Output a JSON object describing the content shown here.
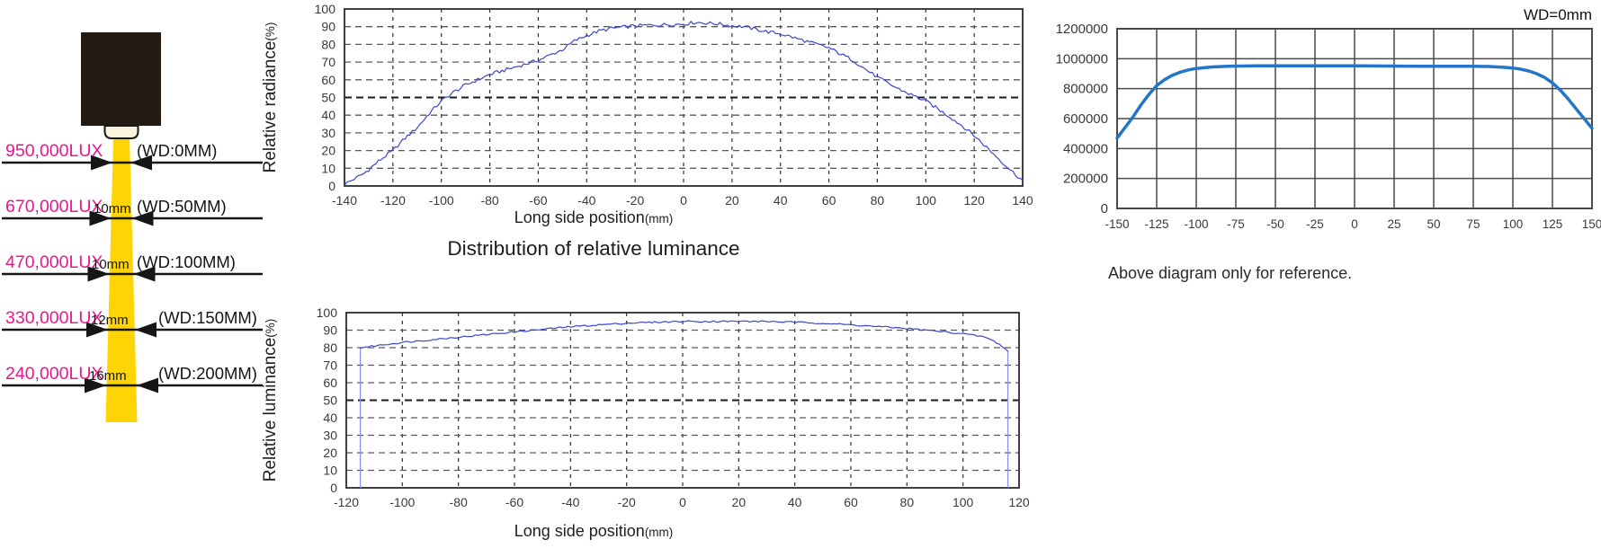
{
  "beam_diagram": {
    "rows": [
      {
        "lux": "950,000LUX",
        "wd": "(WD:0MM)",
        "beam_width": ""
      },
      {
        "lux": "670,000LUX",
        "wd": "(WD:50MM)",
        "beam_width": "10mm"
      },
      {
        "lux": "470,000LUX",
        "wd": "(WD:100MM)",
        "beam_width": "10mm"
      },
      {
        "lux": "330,000LUX",
        "wd": "(WD:150MM)",
        "beam_width": "12mm"
      },
      {
        "lux": "240,000LUX",
        "wd": "(WD:200MM)",
        "beam_width": "16mm"
      }
    ],
    "colors": {
      "beam": "#ffd405",
      "lux_text": "#e8188c",
      "housing": "#241a14",
      "lens": "#faf5da",
      "line": "#161616"
    }
  },
  "chart_data": [
    {
      "id": "radiance",
      "type": "line",
      "title": "",
      "ylabel": "Relative radiance",
      "ylabel_unit": "(%)",
      "xlabel": "Long side position",
      "xlabel_unit": "(mm)",
      "xlim": [
        -140,
        140
      ],
      "xtick_step": 20,
      "ylim": [
        0,
        100
      ],
      "ytick_step": 10,
      "grid": "dashed",
      "bold_gridline_y": 50,
      "line_color": "#3a46cc",
      "noise": 1.0,
      "points": [
        [
          -140,
          1
        ],
        [
          -132,
          7
        ],
        [
          -125,
          15
        ],
        [
          -120,
          20
        ],
        [
          -115,
          27
        ],
        [
          -110,
          33
        ],
        [
          -105,
          41
        ],
        [
          -100,
          48
        ],
        [
          -95,
          53
        ],
        [
          -90,
          57
        ],
        [
          -85,
          60
        ],
        [
          -80,
          63
        ],
        [
          -70,
          67
        ],
        [
          -60,
          71
        ],
        [
          -55,
          74
        ],
        [
          -50,
          77
        ],
        [
          -45,
          82
        ],
        [
          -40,
          85
        ],
        [
          -35,
          87.5
        ],
        [
          -30,
          89
        ],
        [
          -20,
          90.5
        ],
        [
          -10,
          91
        ],
        [
          0,
          91.5
        ],
        [
          5,
          92.5
        ],
        [
          10,
          92
        ],
        [
          15,
          91.5
        ],
        [
          20,
          90.5
        ],
        [
          25,
          90
        ],
        [
          30,
          88.5
        ],
        [
          35,
          87
        ],
        [
          40,
          86
        ],
        [
          45,
          84
        ],
        [
          50,
          82
        ],
        [
          55,
          80
        ],
        [
          60,
          78
        ],
        [
          65,
          74.5
        ],
        [
          70,
          71
        ],
        [
          75,
          66
        ],
        [
          80,
          61.5
        ],
        [
          85,
          57.5
        ],
        [
          90,
          54
        ],
        [
          95,
          51
        ],
        [
          100,
          48
        ],
        [
          105,
          43.5
        ],
        [
          110,
          39
        ],
        [
          115,
          34
        ],
        [
          120,
          28.5
        ],
        [
          125,
          22
        ],
        [
          130,
          15.5
        ],
        [
          135,
          9
        ],
        [
          140,
          3
        ]
      ]
    },
    {
      "id": "luminance",
      "type": "line",
      "title": "Distribution of relative luminance",
      "ylabel": "Relative luminance",
      "ylabel_unit": "(%)",
      "xlabel": "Long side position",
      "xlabel_unit": "(mm)",
      "xlim": [
        -120,
        120
      ],
      "xtick_step": 20,
      "ylim": [
        0,
        100
      ],
      "ytick_step": 10,
      "grid": "dashed",
      "bold_gridline_y": 50,
      "line_color": "#3a46cc",
      "edge_line_color": "#8a93e6",
      "noise": 0.45,
      "points": [
        [
          -115,
          80
        ],
        [
          -110,
          81
        ],
        [
          -100,
          83
        ],
        [
          -90,
          84.5
        ],
        [
          -80,
          86
        ],
        [
          -70,
          87.5
        ],
        [
          -60,
          89
        ],
        [
          -50,
          90.5
        ],
        [
          -40,
          92
        ],
        [
          -30,
          93
        ],
        [
          -20,
          94
        ],
        [
          -10,
          94.5
        ],
        [
          0,
          95
        ],
        [
          10,
          95
        ],
        [
          20,
          95
        ],
        [
          30,
          95
        ],
        [
          40,
          94.5
        ],
        [
          50,
          94
        ],
        [
          60,
          93
        ],
        [
          70,
          92
        ],
        [
          80,
          91
        ],
        [
          90,
          89.5
        ],
        [
          100,
          88
        ],
        [
          108,
          86
        ],
        [
          113,
          82
        ],
        [
          116,
          78
        ]
      ],
      "edge_lines": [
        {
          "x": -115,
          "y": 80
        },
        {
          "x": 116,
          "y": 78
        }
      ]
    },
    {
      "id": "reference",
      "type": "line",
      "title": "WD=0mm",
      "note": "Above diagram only for reference.",
      "ylabel": "",
      "ylabel_unit": "",
      "xlabel": "",
      "xlabel_unit": "",
      "xlim": [
        -150,
        150
      ],
      "xtick_step": 25,
      "ylim": [
        0,
        1200000
      ],
      "ytick_step": 200000,
      "grid": "solid",
      "line_color": "#2475c8",
      "noise": 0,
      "points": [
        [
          -150,
          470000
        ],
        [
          -145,
          540000
        ],
        [
          -140,
          610000
        ],
        [
          -135,
          690000
        ],
        [
          -130,
          760000
        ],
        [
          -125,
          820000
        ],
        [
          -120,
          860000
        ],
        [
          -115,
          890000
        ],
        [
          -110,
          910000
        ],
        [
          -105,
          925000
        ],
        [
          -100,
          935000
        ],
        [
          -90,
          945000
        ],
        [
          -80,
          950000
        ],
        [
          -60,
          953000
        ],
        [
          -40,
          953000
        ],
        [
          -20,
          952000
        ],
        [
          0,
          952000
        ],
        [
          20,
          951000
        ],
        [
          40,
          950000
        ],
        [
          60,
          950000
        ],
        [
          75,
          950000
        ],
        [
          85,
          948000
        ],
        [
          95,
          942000
        ],
        [
          100,
          938000
        ],
        [
          105,
          930000
        ],
        [
          110,
          918000
        ],
        [
          115,
          900000
        ],
        [
          120,
          875000
        ],
        [
          125,
          838000
        ],
        [
          130,
          790000
        ],
        [
          135,
          730000
        ],
        [
          140,
          665000
        ],
        [
          145,
          600000
        ],
        [
          150,
          535000
        ]
      ]
    }
  ]
}
